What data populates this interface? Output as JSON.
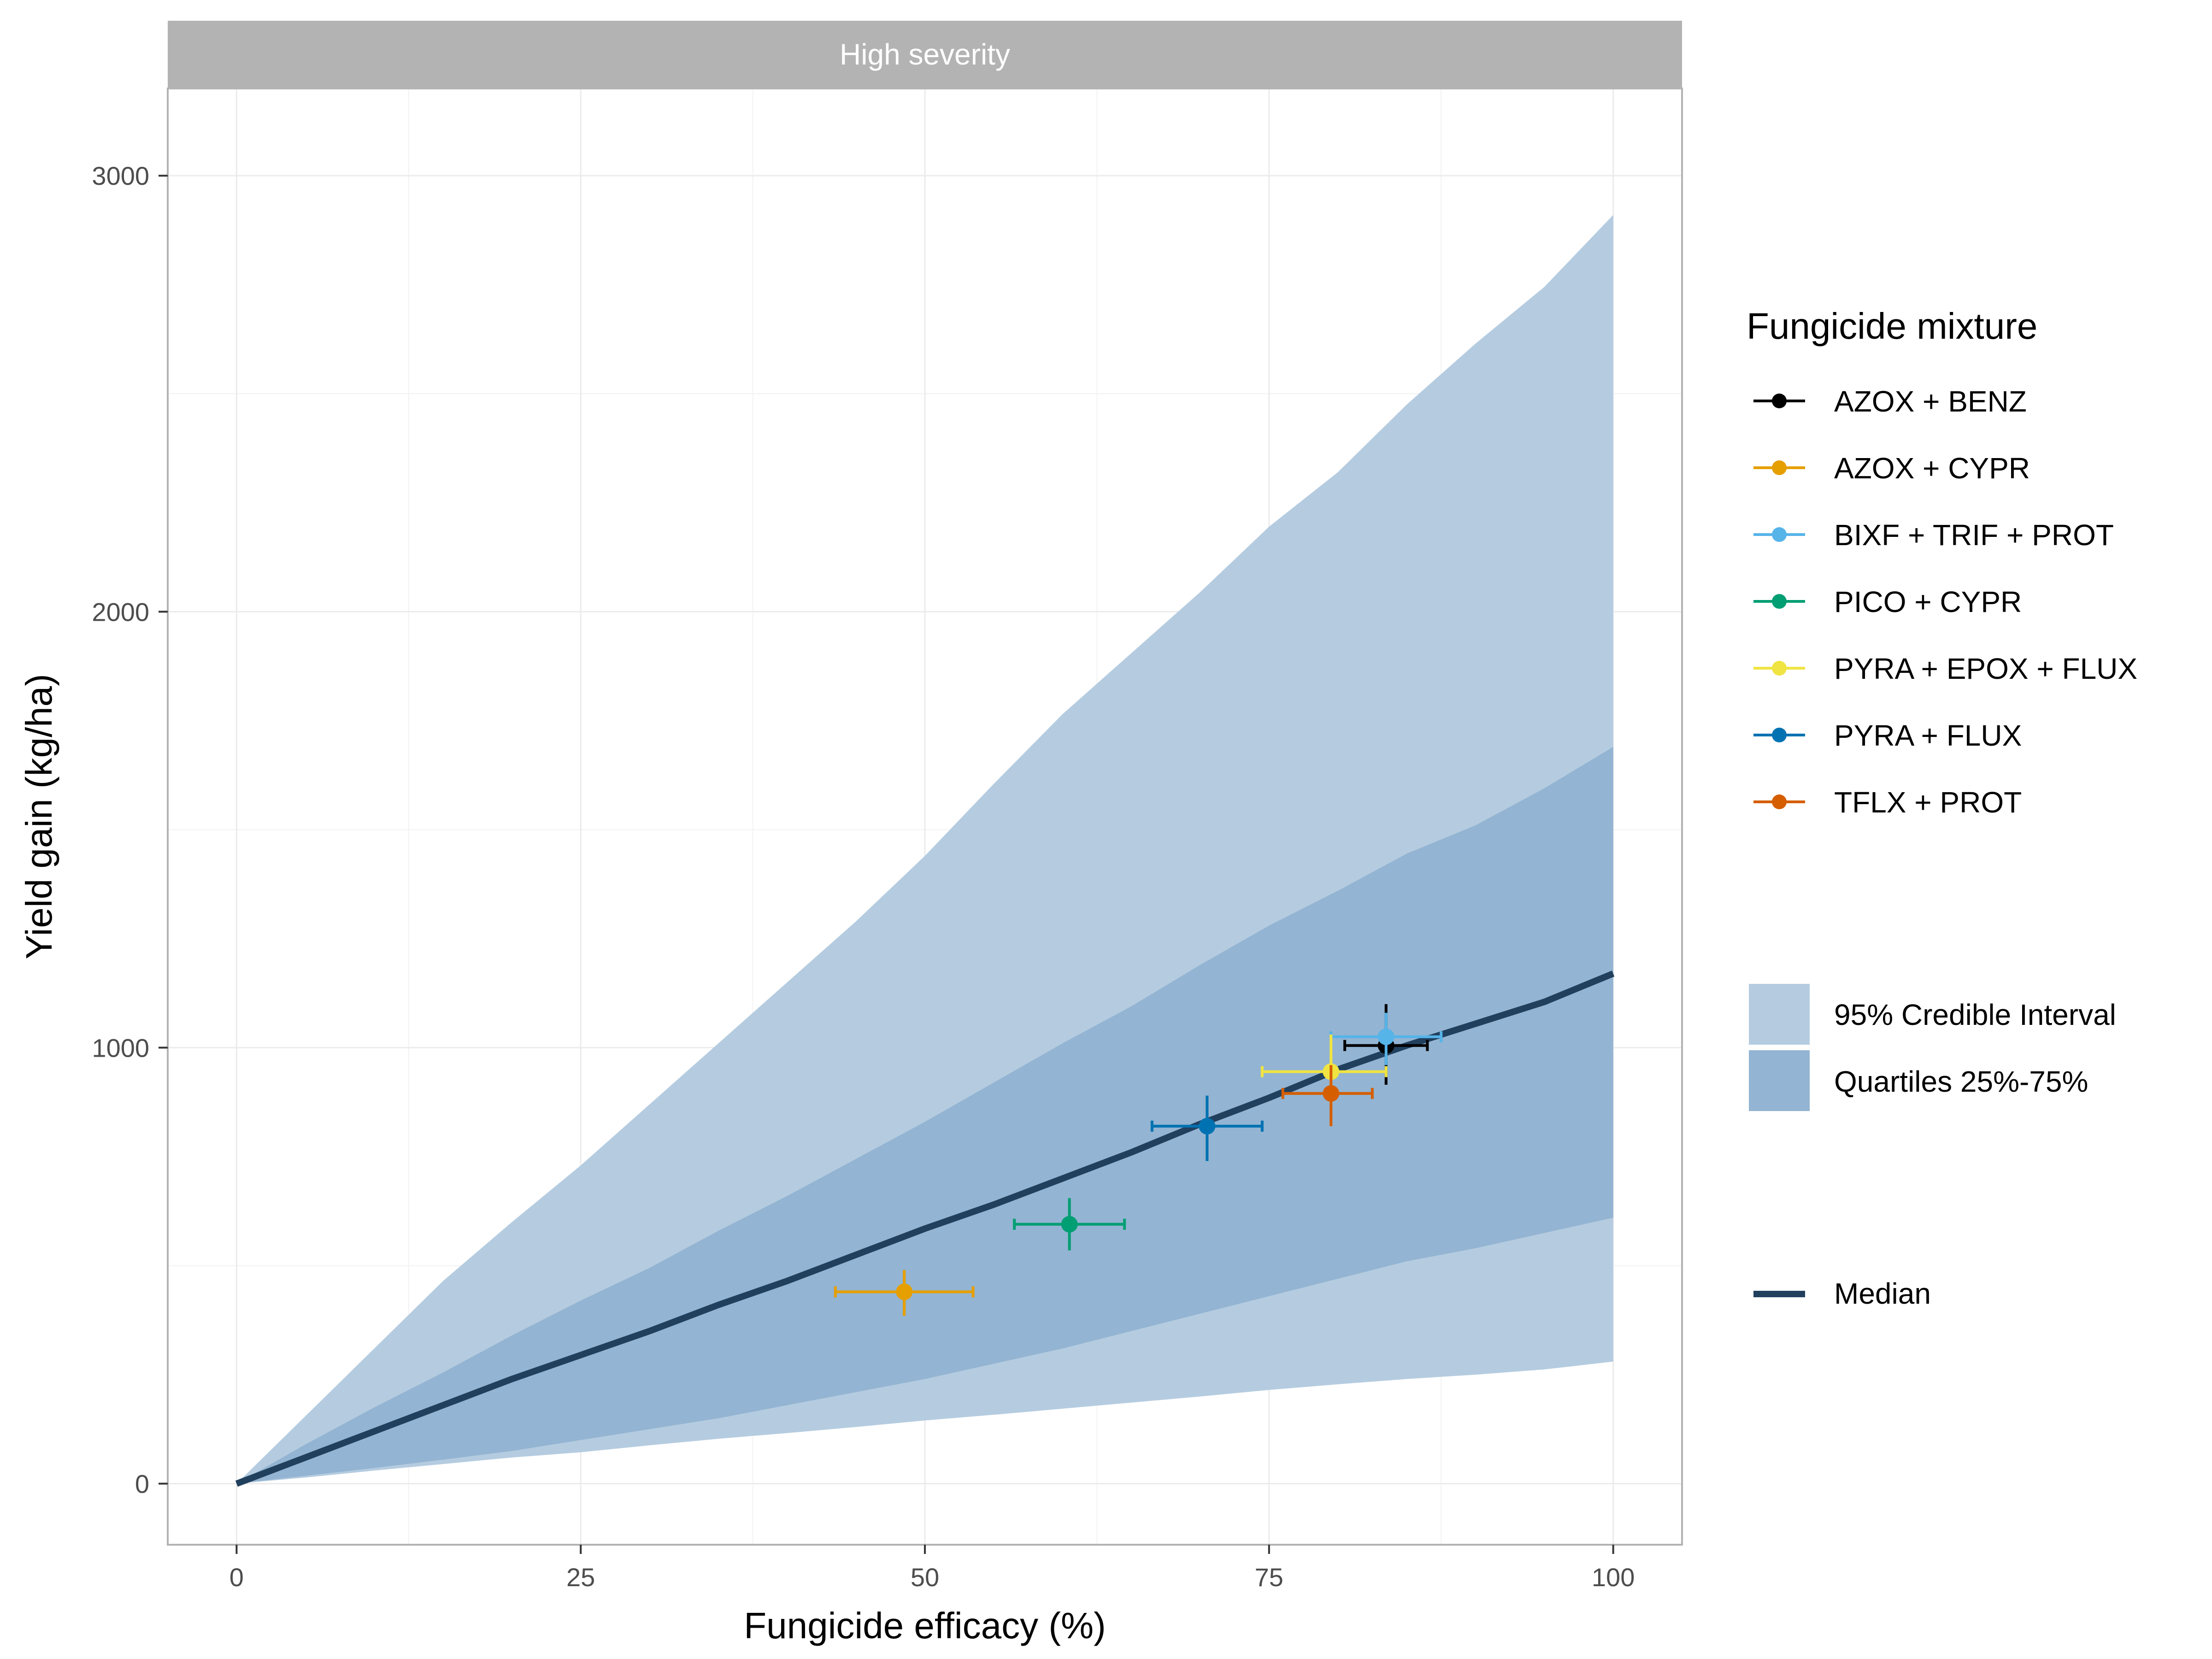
{
  "chart_data": {
    "type": "line",
    "panel_title": "High severity",
    "xlabel": "Fungicide efficacy (%)",
    "ylabel": "Yield gain (kg/ha)",
    "xlim": [
      -5,
      105
    ],
    "ylim": [
      -140,
      3200
    ],
    "x_ticks": [
      0,
      25,
      50,
      75,
      100
    ],
    "y_ticks": [
      0,
      1000,
      2000,
      3000
    ],
    "grid": true,
    "legend_position": "right",
    "legend_title": "Fungicide mixture",
    "band_labels": {
      "ci95": "95% Credible Interval",
      "quartiles": "Quartiles 25%-75%",
      "median": "Median"
    },
    "colors": {
      "ci95": "#b5cce0",
      "quartiles": "#93b4d2",
      "median": "#20405e",
      "strip": "#b3b3b3",
      "grid": "#ebebeb",
      "border": "#b3b3b3"
    },
    "bands": {
      "x": [
        0,
        5,
        10,
        15,
        20,
        25,
        30,
        35,
        40,
        45,
        50,
        55,
        60,
        65,
        70,
        75,
        80,
        85,
        90,
        95,
        100
      ],
      "median": [
        0,
        60,
        120,
        180,
        240,
        295,
        350,
        410,
        465,
        525,
        585,
        640,
        700,
        760,
        825,
        885,
        950,
        1005,
        1055,
        1105,
        1170
      ],
      "q25": [
        0,
        18,
        36,
        55,
        75,
        100,
        125,
        150,
        180,
        210,
        240,
        275,
        310,
        350,
        390,
        430,
        470,
        510,
        540,
        575,
        610
      ],
      "q75": [
        0,
        90,
        175,
        255,
        340,
        420,
        495,
        580,
        660,
        745,
        830,
        920,
        1010,
        1095,
        1190,
        1280,
        1360,
        1445,
        1510,
        1595,
        1690
      ],
      "ci025": [
        0,
        14,
        30,
        45,
        60,
        72,
        88,
        103,
        116,
        130,
        145,
        158,
        172,
        186,
        200,
        215,
        228,
        240,
        250,
        262,
        280
      ],
      "ci975": [
        0,
        155,
        310,
        465,
        600,
        730,
        870,
        1010,
        1150,
        1290,
        1440,
        1605,
        1765,
        1905,
        2045,
        2195,
        2320,
        2475,
        2615,
        2745,
        2910
      ]
    },
    "series": [
      {
        "name": "AZOX + BENZ",
        "color": "#000000",
        "x": 83.5,
        "y": 1005,
        "xerr": [
          80.5,
          86.5
        ],
        "yerr": [
          915,
          1100
        ]
      },
      {
        "name": "AZOX + CYPR",
        "color": "#e69f00",
        "x": 48.5,
        "y": 440,
        "xerr": [
          43.5,
          53.5
        ],
        "yerr": [
          385,
          490
        ]
      },
      {
        "name": "BIXF + TRIF + PROT",
        "color": "#56b4e9",
        "x": 83.5,
        "y": 1025,
        "xerr": [
          79.5,
          87.5
        ],
        "yerr": [
          960,
          1080
        ]
      },
      {
        "name": "PICO + CYPR",
        "color": "#009e73",
        "x": 60.5,
        "y": 595,
        "xerr": [
          56.5,
          64.5
        ],
        "yerr": [
          535,
          655
        ]
      },
      {
        "name": "PYRA + EPOX + FLUX",
        "color": "#f0e442",
        "x": 79.5,
        "y": 945,
        "xerr": [
          74.5,
          83.5
        ],
        "yerr": [
          870,
          1030
        ]
      },
      {
        "name": "PYRA + FLUX",
        "color": "#0072b2",
        "x": 70.5,
        "y": 820,
        "xerr": [
          66.5,
          74.5
        ],
        "yerr": [
          740,
          890
        ]
      },
      {
        "name": "TFLX + PROT",
        "color": "#d55e00",
        "x": 79.5,
        "y": 895,
        "xerr": [
          76.0,
          82.5
        ],
        "yerr": [
          820,
          960
        ]
      }
    ]
  }
}
